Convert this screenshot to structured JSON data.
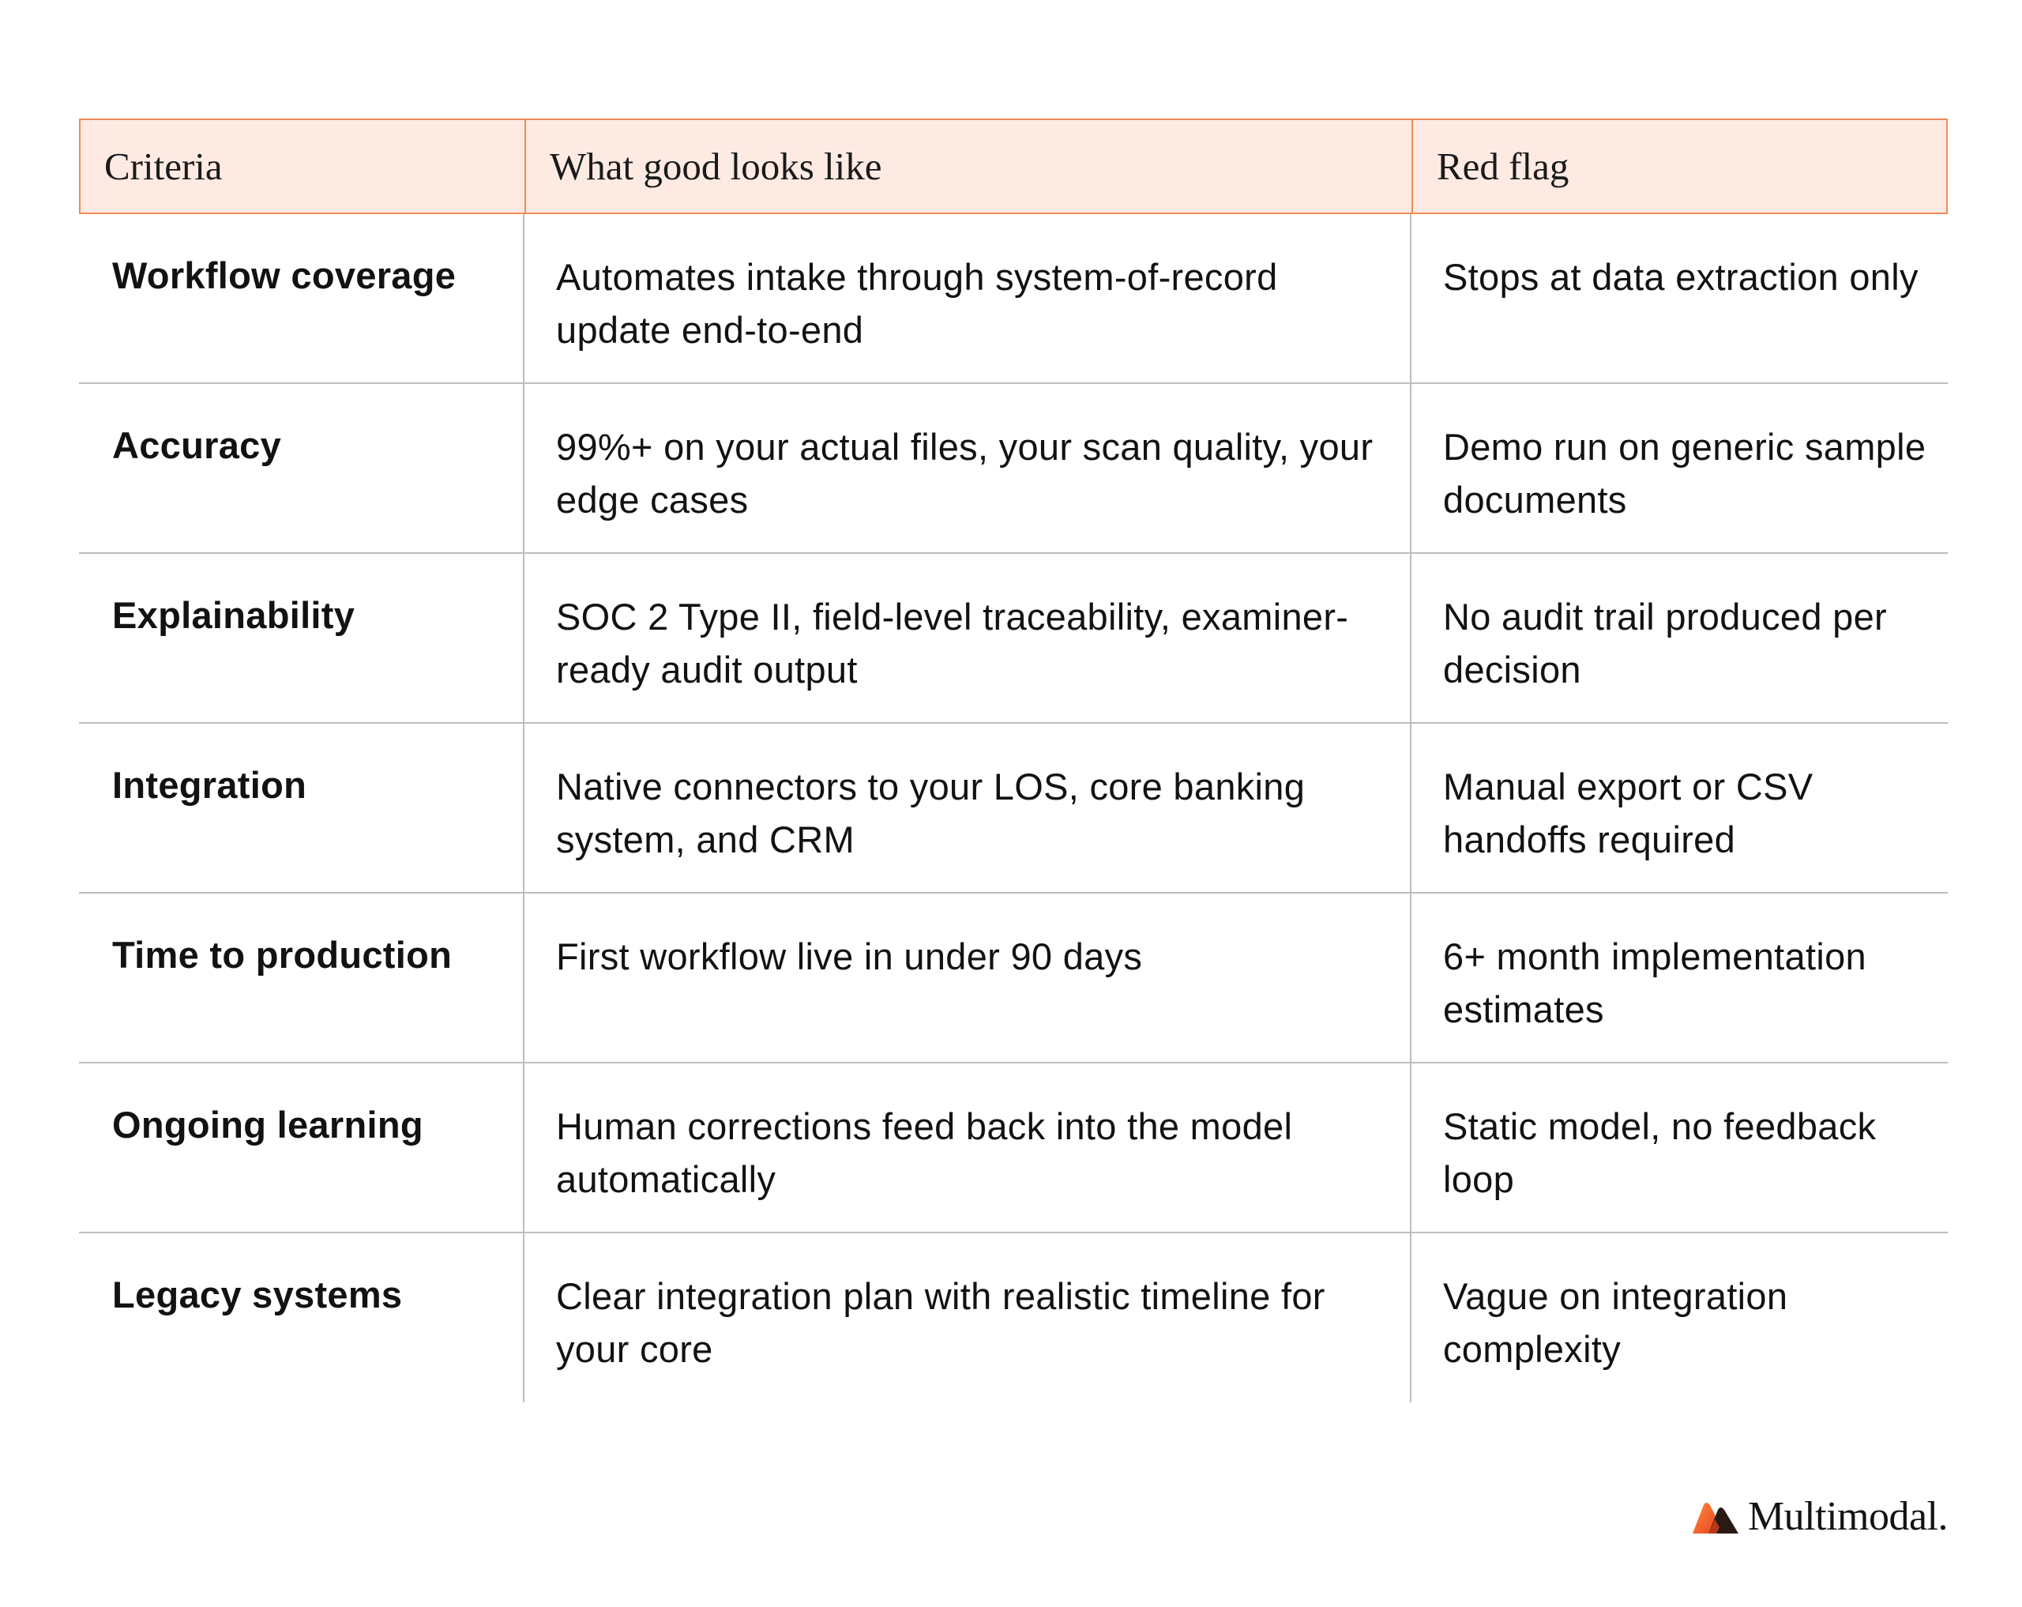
{
  "table": {
    "headers": {
      "criteria": "Criteria",
      "good": "What good looks like",
      "flag": "Red flag"
    },
    "rows": [
      {
        "criteria": "Workflow coverage",
        "good": "Automates intake through system-of-record update end-to-end",
        "flag": "Stops at data extraction only"
      },
      {
        "criteria": "Accuracy",
        "good": "99%+ on your actual files, your scan quality, your edge cases",
        "flag": "Demo run on generic sample documents"
      },
      {
        "criteria": "Explainability",
        "good": "SOC 2 Type II, field-level traceability, examiner-ready audit output",
        "flag": "No audit trail produced per decision"
      },
      {
        "criteria": "Integration",
        "good": "Native connectors to your LOS, core banking system, and CRM",
        "flag": "Manual export or CSV handoffs required"
      },
      {
        "criteria": "Time to production",
        "good": "First workflow live in under 90 days",
        "flag": "6+ month implementation estimates"
      },
      {
        "criteria": "Ongoing learning",
        "good": "Human corrections feed back into the model automatically",
        "flag": "Static model, no feedback loop"
      },
      {
        "criteria": "Legacy systems",
        "good": "Clear integration plan with realistic timeline for your core",
        "flag": "Vague on integration complexity"
      }
    ]
  },
  "brand": {
    "name": "Multimodal.",
    "logo_icon": "multimodal-logo-icon",
    "colors": {
      "header_bg": "#fdebe3",
      "header_border": "#f08a55",
      "divider": "#bdbdbd",
      "logo_orange": "#f26a2e",
      "logo_dark": "#2a1a14"
    }
  }
}
